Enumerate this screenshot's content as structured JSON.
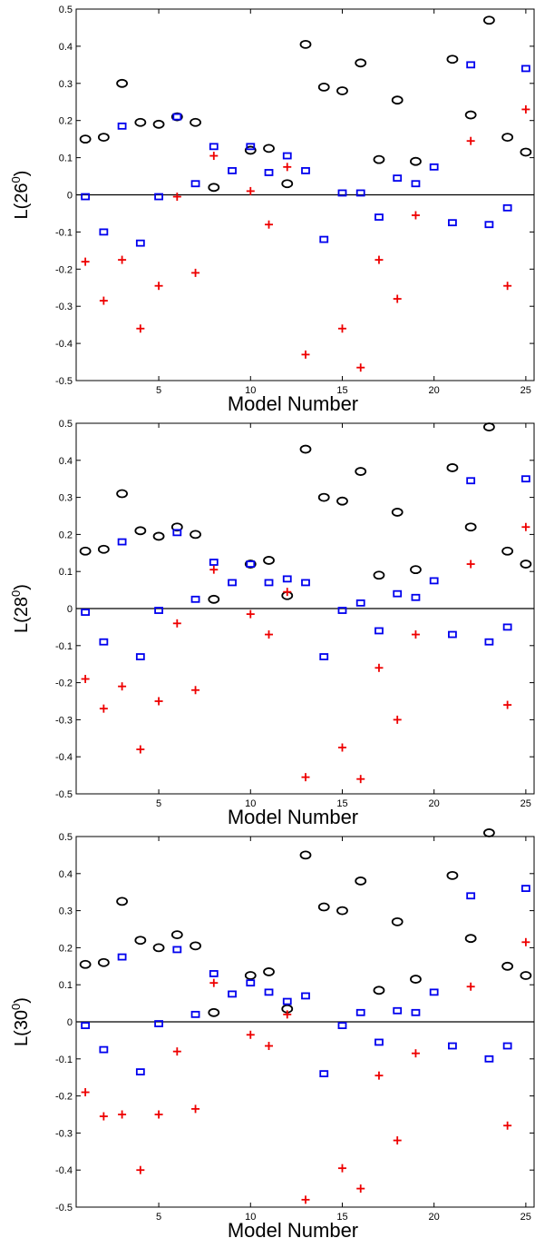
{
  "chart_data": [
    {
      "type": "scatter",
      "ylabel": "L(26",
      "ylabel_sup": "0",
      "ylabel_close": ")",
      "xlabel": "Model Number",
      "xlim": [
        0.5,
        25.5
      ],
      "ylim": [
        -0.5,
        0.5
      ],
      "xticks": [
        5,
        10,
        15,
        20,
        25
      ],
      "yticks": [
        "-0.5",
        "-0.4",
        "-0.3",
        "-0.2",
        "-0.1",
        "0",
        "0.1",
        "0.2",
        "0.3",
        "0.4",
        "0.5"
      ],
      "zero_line": true,
      "series": [
        {
          "marker": "circle",
          "color": "#000000",
          "x": [
            1,
            2,
            3,
            4,
            5,
            6,
            7,
            8,
            10,
            11,
            12,
            13,
            14,
            15,
            16,
            17,
            18,
            19,
            21,
            22,
            23,
            24,
            25
          ],
          "y": [
            0.15,
            0.155,
            0.3,
            0.195,
            0.19,
            0.21,
            0.195,
            0.02,
            0.12,
            0.125,
            0.03,
            0.405,
            0.29,
            0.28,
            0.355,
            0.095,
            0.255,
            0.09,
            0.365,
            0.215,
            0.47,
            0.155,
            0.115
          ]
        },
        {
          "marker": "square",
          "color": "#0000ee",
          "x": [
            1,
            2,
            3,
            4,
            5,
            6,
            7,
            8,
            9,
            10,
            11,
            12,
            13,
            14,
            15,
            16,
            17,
            18,
            19,
            20,
            21,
            22,
            23,
            24,
            25
          ],
          "y": [
            -0.005,
            -0.1,
            0.185,
            -0.13,
            -0.005,
            0.21,
            0.03,
            0.13,
            0.065,
            0.13,
            0.06,
            0.105,
            0.065,
            -0.12,
            0.005,
            0.005,
            -0.06,
            0.045,
            0.03,
            0.075,
            -0.075,
            0.35,
            -0.08,
            -0.035,
            0.34
          ]
        },
        {
          "marker": "plus",
          "color": "#ee0000",
          "x": [
            1,
            2,
            3,
            4,
            5,
            6,
            7,
            8,
            10,
            11,
            12,
            13,
            15,
            16,
            17,
            18,
            19,
            22,
            24,
            25
          ],
          "y": [
            -0.18,
            -0.285,
            -0.175,
            -0.36,
            -0.245,
            -0.005,
            -0.21,
            0.105,
            0.01,
            -0.08,
            0.075,
            -0.43,
            -0.36,
            -0.465,
            -0.175,
            -0.28,
            -0.055,
            0.145,
            -0.245,
            0.23
          ]
        }
      ]
    },
    {
      "type": "scatter",
      "ylabel": "L(28",
      "ylabel_sup": "0",
      "ylabel_close": ")",
      "xlabel": "Model Number",
      "xlim": [
        0.5,
        25.5
      ],
      "ylim": [
        -0.5,
        0.5
      ],
      "xticks": [
        5,
        10,
        15,
        20,
        25
      ],
      "yticks": [
        "-0.5",
        "-0.4",
        "-0.3",
        "-0.2",
        "-0.1",
        "0",
        "0.1",
        "0.2",
        "0.3",
        "0.4",
        "0.5"
      ],
      "zero_line": true,
      "series": [
        {
          "marker": "circle",
          "color": "#000000",
          "x": [
            1,
            2,
            3,
            4,
            5,
            6,
            7,
            8,
            10,
            11,
            12,
            13,
            14,
            15,
            16,
            17,
            18,
            19,
            21,
            22,
            23,
            24,
            25
          ],
          "y": [
            0.155,
            0.16,
            0.31,
            0.21,
            0.195,
            0.22,
            0.2,
            0.025,
            0.12,
            0.13,
            0.035,
            0.43,
            0.3,
            0.29,
            0.37,
            0.09,
            0.26,
            0.105,
            0.38,
            0.22,
            0.49,
            0.155,
            0.12
          ]
        },
        {
          "marker": "square",
          "color": "#0000ee",
          "x": [
            1,
            2,
            3,
            4,
            5,
            6,
            7,
            8,
            9,
            10,
            11,
            12,
            13,
            14,
            15,
            16,
            17,
            18,
            19,
            20,
            21,
            22,
            23,
            24,
            25
          ],
          "y": [
            -0.01,
            -0.09,
            0.18,
            -0.13,
            -0.005,
            0.205,
            0.025,
            0.125,
            0.07,
            0.12,
            0.07,
            0.08,
            0.07,
            -0.13,
            -0.005,
            0.015,
            -0.06,
            0.04,
            0.03,
            0.075,
            -0.07,
            0.345,
            -0.09,
            -0.05,
            0.35
          ]
        },
        {
          "marker": "plus",
          "color": "#ee0000",
          "x": [
            1,
            2,
            3,
            4,
            5,
            6,
            7,
            8,
            10,
            11,
            12,
            13,
            15,
            16,
            17,
            18,
            19,
            22,
            24,
            25
          ],
          "y": [
            -0.19,
            -0.27,
            -0.21,
            -0.38,
            -0.25,
            -0.04,
            -0.22,
            0.105,
            -0.015,
            -0.07,
            0.045,
            -0.455,
            -0.375,
            -0.46,
            -0.16,
            -0.3,
            -0.07,
            0.12,
            -0.26,
            0.22
          ]
        }
      ]
    },
    {
      "type": "scatter",
      "ylabel": "L(30",
      "ylabel_sup": "0",
      "ylabel_close": ")",
      "xlabel": "Model Number",
      "xlim": [
        0.5,
        25.5
      ],
      "ylim": [
        -0.5,
        0.5
      ],
      "xticks": [
        5,
        10,
        15,
        20,
        25
      ],
      "yticks": [
        "-0.5",
        "-0.4",
        "-0.3",
        "-0.2",
        "-0.1",
        "0",
        "0.1",
        "0.2",
        "0.3",
        "0.4",
        "0.5"
      ],
      "zero_line": true,
      "series": [
        {
          "marker": "circle",
          "color": "#000000",
          "x": [
            1,
            2,
            3,
            4,
            5,
            6,
            7,
            8,
            10,
            11,
            12,
            13,
            14,
            15,
            16,
            17,
            18,
            19,
            21,
            22,
            23,
            24,
            25
          ],
          "y": [
            0.155,
            0.16,
            0.325,
            0.22,
            0.2,
            0.235,
            0.205,
            0.025,
            0.125,
            0.135,
            0.035,
            0.45,
            0.31,
            0.3,
            0.38,
            0.085,
            0.27,
            0.115,
            0.395,
            0.225,
            0.51,
            0.15,
            0.125
          ]
        },
        {
          "marker": "square",
          "color": "#0000ee",
          "x": [
            1,
            2,
            3,
            4,
            5,
            6,
            7,
            8,
            9,
            10,
            11,
            12,
            13,
            14,
            15,
            16,
            17,
            18,
            19,
            20,
            21,
            22,
            23,
            24,
            25
          ],
          "y": [
            -0.01,
            -0.075,
            0.175,
            -0.135,
            -0.005,
            0.195,
            0.02,
            0.13,
            0.075,
            0.105,
            0.08,
            0.055,
            0.07,
            -0.14,
            -0.01,
            0.025,
            -0.055,
            0.03,
            0.025,
            0.08,
            -0.065,
            0.34,
            -0.1,
            -0.065,
            0.36
          ]
        },
        {
          "marker": "plus",
          "color": "#ee0000",
          "x": [
            1,
            2,
            3,
            4,
            5,
            6,
            7,
            8,
            10,
            11,
            12,
            13,
            15,
            16,
            17,
            18,
            19,
            22,
            24,
            25
          ],
          "y": [
            -0.19,
            -0.255,
            -0.25,
            -0.4,
            -0.25,
            -0.08,
            -0.235,
            0.105,
            -0.035,
            -0.065,
            0.02,
            -0.48,
            -0.395,
            -0.45,
            -0.145,
            -0.32,
            -0.085,
            0.095,
            -0.28,
            0.215
          ]
        }
      ]
    }
  ]
}
